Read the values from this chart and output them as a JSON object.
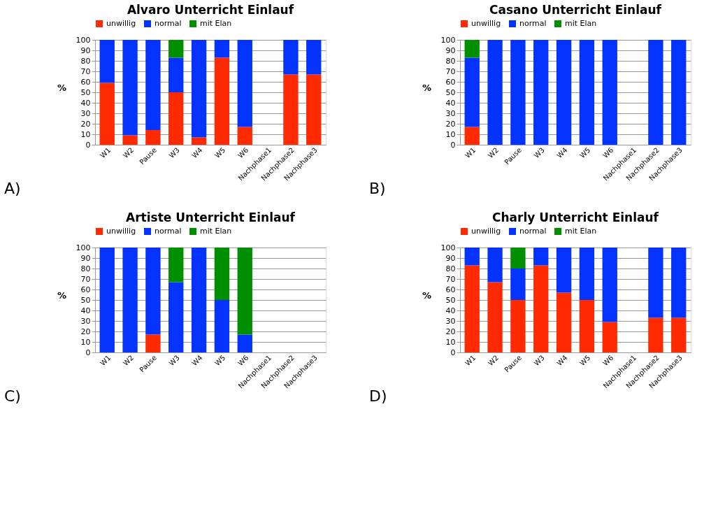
{
  "chart_data": [
    {
      "type": "bar",
      "stacked": true,
      "title": "Alvaro Unterricht Einlauf",
      "ylabel": "%",
      "categories": [
        "W1",
        "W2",
        "Pause",
        "W3",
        "W4",
        "W5",
        "W6",
        "Nachphase1",
        "Nachphase2",
        "Nachphase3"
      ],
      "series": [
        {
          "name": "unwillig",
          "color": "#ff2a00",
          "values": [
            59,
            9,
            14,
            50,
            7,
            83,
            17,
            null,
            67,
            67
          ]
        },
        {
          "name": "normal",
          "color": "#0433ff",
          "values": [
            41,
            91,
            86,
            33,
            93,
            17,
            83,
            null,
            33,
            33
          ]
        },
        {
          "name": "mit Elan",
          "color": "#008f00",
          "values": [
            0,
            0,
            0,
            17,
            0,
            0,
            0,
            null,
            0,
            0
          ]
        }
      ],
      "ylim": [
        0,
        100
      ],
      "yticks": [
        0,
        10,
        20,
        30,
        40,
        50,
        60,
        70,
        80,
        90,
        100
      ],
      "grid": "y",
      "legend": "top",
      "annotations": [
        "A)"
      ]
    },
    {
      "type": "bar",
      "stacked": true,
      "title": "Casano Unterricht Einlauf",
      "ylabel": "%",
      "categories": [
        "W1",
        "W2",
        "Pause",
        "W3",
        "W4",
        "W5",
        "W6",
        "Nachphase1",
        "Nachphase2",
        "Nachphase3"
      ],
      "series": [
        {
          "name": "unwillig",
          "color": "#ff2a00",
          "values": [
            17,
            0,
            0,
            0,
            0,
            0,
            0,
            null,
            0,
            0
          ]
        },
        {
          "name": "normal",
          "color": "#0433ff",
          "values": [
            66,
            100,
            100,
            100,
            100,
            100,
            100,
            null,
            100,
            100
          ]
        },
        {
          "name": "mit Elan",
          "color": "#008f00",
          "values": [
            17,
            0,
            0,
            0,
            0,
            0,
            0,
            null,
            0,
            0
          ]
        }
      ],
      "ylim": [
        0,
        100
      ],
      "yticks": [
        0,
        10,
        20,
        30,
        40,
        50,
        60,
        70,
        80,
        90,
        100
      ],
      "grid": "y",
      "legend": "top",
      "annotations": [
        "B)"
      ]
    },
    {
      "type": "bar",
      "stacked": true,
      "title": "Artiste Unterricht Einlauf",
      "ylabel": "%",
      "categories": [
        "W1",
        "W2",
        "Pause",
        "W3",
        "W4",
        "W5",
        "W6",
        "Nachphase1",
        "Nachphase2",
        "Nachphase3"
      ],
      "series": [
        {
          "name": "unwillig",
          "color": "#ff2a00",
          "values": [
            0,
            0,
            17,
            0,
            0,
            0,
            0,
            null,
            null,
            null
          ]
        },
        {
          "name": "normal",
          "color": "#0433ff",
          "values": [
            100,
            100,
            83,
            67,
            100,
            50,
            17,
            null,
            null,
            null
          ]
        },
        {
          "name": "mit Elan",
          "color": "#008f00",
          "values": [
            0,
            0,
            0,
            33,
            0,
            50,
            83,
            null,
            null,
            null
          ]
        }
      ],
      "ylim": [
        0,
        100
      ],
      "yticks": [
        0,
        10,
        20,
        30,
        40,
        50,
        60,
        70,
        80,
        90,
        100
      ],
      "grid": "y",
      "legend": "top",
      "annotations": [
        "C)"
      ]
    },
    {
      "type": "bar",
      "stacked": true,
      "title": "Charly Unterricht Einlauf",
      "ylabel": "%",
      "categories": [
        "W1",
        "W2",
        "Pause",
        "W3",
        "W4",
        "W5",
        "W6",
        "Nachphase1",
        "Nachphase2",
        "Nachphase3"
      ],
      "series": [
        {
          "name": "unwillig",
          "color": "#ff2a00",
          "values": [
            83,
            67,
            50,
            83,
            57,
            50,
            29,
            null,
            33,
            33
          ]
        },
        {
          "name": "normal",
          "color": "#0433ff",
          "values": [
            17,
            33,
            30,
            17,
            43,
            50,
            71,
            null,
            67,
            67
          ]
        },
        {
          "name": "mit Elan",
          "color": "#008f00",
          "values": [
            0,
            0,
            20,
            0,
            0,
            0,
            0,
            null,
            0,
            0
          ]
        }
      ],
      "ylim": [
        0,
        100
      ],
      "yticks": [
        0,
        10,
        20,
        30,
        40,
        50,
        60,
        70,
        80,
        90,
        100
      ],
      "grid": "y",
      "legend": "top",
      "annotations": [
        "D)"
      ]
    }
  ]
}
